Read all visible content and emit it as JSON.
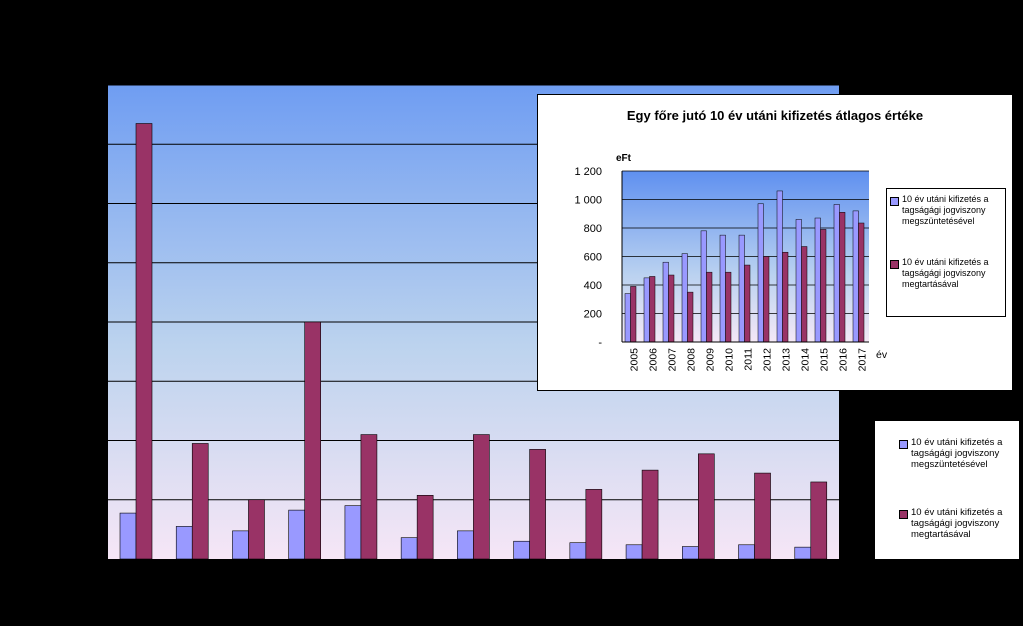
{
  "chart_data": [
    {
      "type": "bar",
      "series": [
        {
          "name": "10 év utáni kifizetés a tagsági jogviszony megszüntetésével",
          "color": "#9999ff",
          "values": [
            155,
            110,
            95,
            165,
            180,
            72,
            95,
            60,
            55,
            48,
            42,
            48,
            40
          ]
        },
        {
          "name": "10 év utáni kifizetés a tagsági jogviszony megtartásával",
          "color": "#993366",
          "values": [
            1470,
            390,
            200,
            800,
            420,
            215,
            420,
            370,
            235,
            300,
            355,
            290,
            260
          ]
        }
      ],
      "ylim": [
        0,
        1600
      ],
      "grid": true,
      "legend_position": "right"
    },
    {
      "type": "bar",
      "title": "Egy főre jutó 10 év utáni kifizetés átlagos értéke",
      "ylabel": "eFt",
      "xlabel": "év",
      "categories": [
        "2005",
        "2006",
        "2007",
        "2008",
        "2009",
        "2010",
        "2011",
        "2012",
        "2013",
        "2014",
        "2015",
        "2016",
        "2017"
      ],
      "yticks": [
        "-",
        "200",
        "400",
        "600",
        "800",
        "1 000",
        "1 200"
      ],
      "ylim": [
        0,
        1200
      ],
      "series": [
        {
          "name": "10 év utáni kifizetés a tagságági jogviszony megszüntetésével",
          "color": "#9999ff",
          "values": [
            340,
            450,
            560,
            620,
            780,
            750,
            750,
            970,
            1060,
            860,
            870,
            965,
            920
          ]
        },
        {
          "name": "10 év utáni kifizetés a tagságági jogviszony megtartásával",
          "color": "#993366",
          "values": [
            390,
            460,
            470,
            350,
            490,
            490,
            540,
            600,
            630,
            670,
            790,
            910,
            835
          ]
        }
      ],
      "grid": true,
      "legend_position": "right"
    }
  ],
  "legend_main": [
    "10 év utáni kifizetés a tagságági jogviszony megszüntetésével",
    "10 év utáni kifizetés a tagságági jogviszony megtartásával"
  ],
  "legend_inset": [
    "10 év utáni kifizetés a tagságági jogviszony megszüntetésével",
    "10 év utáni kifizetés a tagságági jogviszony megtartásával"
  ]
}
